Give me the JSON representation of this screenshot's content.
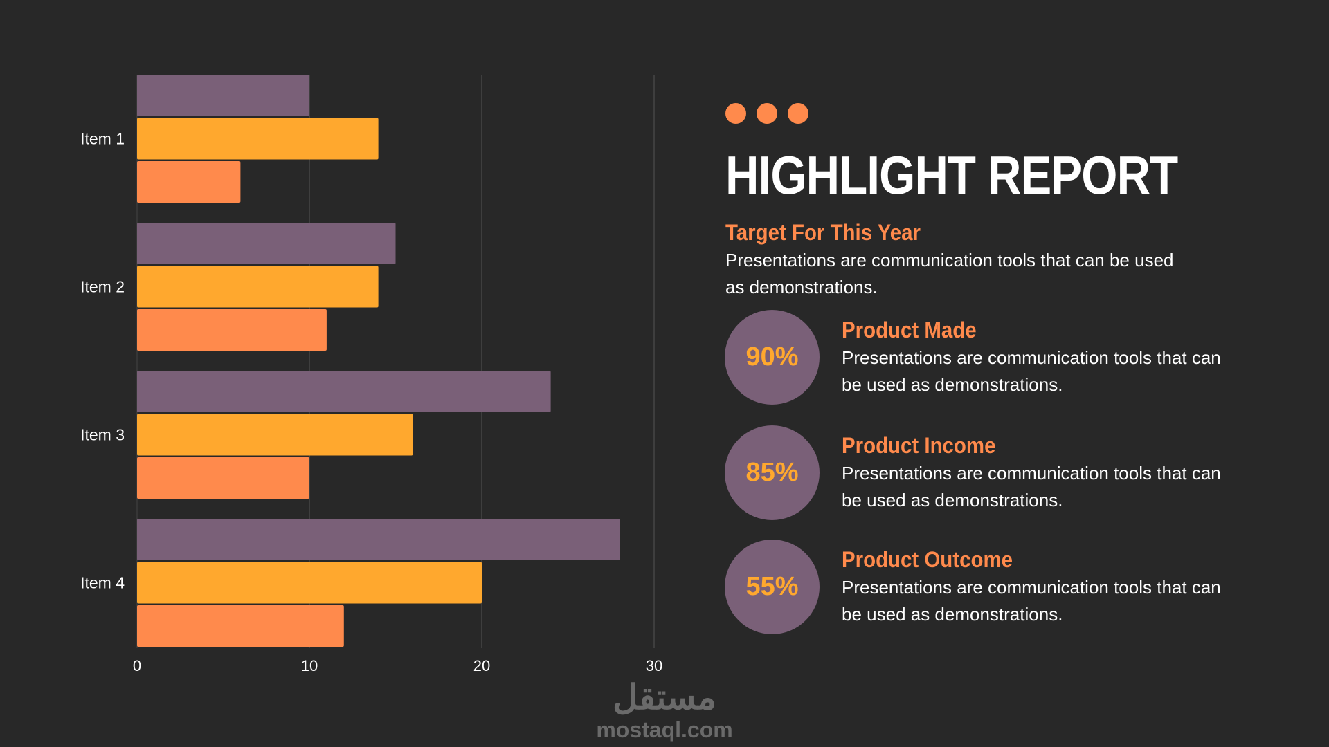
{
  "colors": {
    "background": "#282828",
    "purple": "#7a6078",
    "yellow": "#ffa82e",
    "orange": "#ff8a4c",
    "grid": "#555555",
    "text": "#ffffff"
  },
  "chart_data": {
    "type": "bar",
    "orientation": "horizontal",
    "categories": [
      "Item 1",
      "Item 2",
      "Item 3",
      "Item 4"
    ],
    "series": [
      {
        "values": [
          10,
          15,
          24,
          28
        ],
        "color": "#7a6078"
      },
      {
        "values": [
          14,
          14,
          16,
          20
        ],
        "color": "#ffa82e"
      },
      {
        "values": [
          6,
          11,
          10,
          12
        ],
        "color": "#ff8a4c"
      }
    ],
    "xlim": [
      0,
      30
    ],
    "xticks": [
      "0",
      "10",
      "20",
      "30"
    ],
    "grid": true,
    "legend": "none"
  },
  "report": {
    "title": "HIGHLIGHT REPORT",
    "target": {
      "heading": "Target For This Year",
      "text": "Presentations are communication tools that can be used as demonstrations."
    },
    "stats": [
      {
        "percent": "90%",
        "heading": "Product Made",
        "text": "Presentations are communication tools that can be used as demonstrations."
      },
      {
        "percent": "85%",
        "heading": "Product Income",
        "text": "Presentations are communication tools that can be used as demonstrations."
      },
      {
        "percent": "55%",
        "heading": "Product Outcome",
        "text": "Presentations are communication tools that can be used as demonstrations."
      }
    ]
  },
  "watermark": {
    "arabic": "مستقل",
    "latin": "mostaql.com"
  }
}
